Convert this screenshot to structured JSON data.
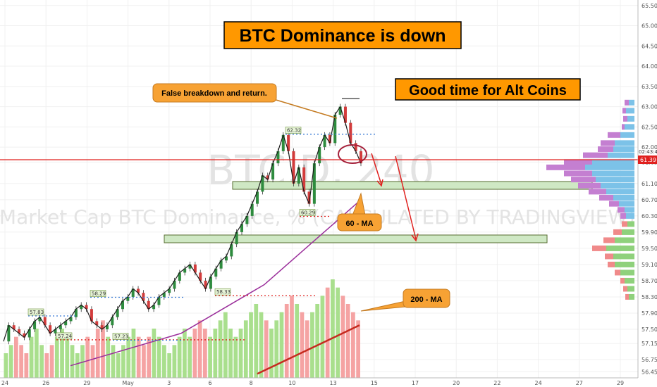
{
  "chart_data": {
    "type": "line",
    "title": "",
    "watermark": {
      "symbol": "BTC.D, 240",
      "name": "Market Cap BTC Dominance, % (CALCULATED BY TRADINGVIEW)",
      "color": "#e3e3e3"
    },
    "x_ticks": [
      "24",
      "26",
      "29",
      "May",
      "3",
      "6",
      "8",
      "10",
      "13",
      "15",
      "17",
      "20",
      "22",
      "24",
      "27",
      "29"
    ],
    "y_ticks": [
      "56.45",
      "56.75",
      "57.15",
      "57.50",
      "57.90",
      "58.30",
      "58.70",
      "59.10",
      "59.50",
      "59.90",
      "60.30",
      "60.70",
      "61.10",
      "61.63",
      "62.00",
      "62.50",
      "63.00",
      "63.50",
      "64.00",
      "64.50",
      "65.00",
      "65.50"
    ],
    "ylim": [
      56.3,
      65.6
    ],
    "current_price": {
      "value": 61.39,
      "label": "61.39",
      "countdown": "02:43:4",
      "color": "#e0201e"
    },
    "price_levels": [
      {
        "label": "62.32",
        "value": 62.32
      },
      {
        "label": "60.29",
        "value": 60.29
      },
      {
        "label": "58.33",
        "value": 58.33
      },
      {
        "label": "58.29",
        "value": 58.29
      },
      {
        "label": "57.83",
        "value": 57.83
      },
      {
        "label": "57.24",
        "value": 57.24
      },
      {
        "label": "57.23",
        "value": 57.23
      }
    ],
    "price_series": [
      57.2,
      57.6,
      57.5,
      57.4,
      57.3,
      57.5,
      57.7,
      57.8,
      57.6,
      57.4,
      57.5,
      57.6,
      57.7,
      57.8,
      58.0,
      58.1,
      58.0,
      57.7,
      57.6,
      57.5,
      57.6,
      57.8,
      58.0,
      58.2,
      58.3,
      58.5,
      58.4,
      58.2,
      58.0,
      58.1,
      58.3,
      58.4,
      58.5,
      58.7,
      58.9,
      59.0,
      59.1,
      58.9,
      58.7,
      58.5,
      58.8,
      59.0,
      59.2,
      59.3,
      59.6,
      59.9,
      60.1,
      60.3,
      60.6,
      60.9,
      61.3,
      61.2,
      61.6,
      61.9,
      62.3,
      61.9,
      61.1,
      61.5,
      60.9,
      60.6,
      61.6,
      62.0,
      62.3,
      62.1,
      62.8,
      63.0,
      62.6,
      62.1,
      61.9,
      61.6
    ],
    "series": [
      {
        "name": "60 - MA",
        "color": "#9b2f9b",
        "values": [
          56.6,
          56.7,
          56.8,
          56.9,
          57.0,
          57.1,
          57.2,
          57.3,
          57.4,
          57.6,
          57.8,
          58.0,
          58.2,
          58.4,
          58.6,
          58.9,
          59.2,
          59.5,
          59.8,
          60.1,
          60.4,
          60.7
        ]
      },
      {
        "name": "200 - MA",
        "color": "#c62a1f",
        "values": [
          56.4,
          56.6,
          56.8,
          57.0,
          57.2,
          57.4,
          57.6
        ]
      }
    ],
    "volume_bars": [
      3,
      4,
      5,
      4,
      3,
      5,
      6,
      4,
      3,
      4,
      5,
      6,
      5,
      4,
      3,
      4,
      5,
      4,
      6,
      7,
      5,
      4,
      3,
      4,
      5,
      6,
      5,
      4,
      5,
      6,
      5,
      4,
      3,
      4,
      5,
      6,
      5,
      6,
      7,
      6,
      5,
      6,
      7,
      8,
      6,
      5,
      6,
      7,
      8,
      9,
      8,
      7,
      6,
      7,
      8,
      9,
      10,
      9,
      8,
      7,
      8,
      9,
      10,
      11,
      12,
      11,
      10,
      9,
      8,
      7
    ],
    "zones": [
      {
        "name": "support-upper",
        "from": 60.62,
        "to": 60.78,
        "color": "#cfe8c4"
      },
      {
        "name": "support-lower",
        "from": 59.32,
        "to": 59.48,
        "color": "#cfe8c4"
      }
    ],
    "volume_profile_colors": {
      "up": "#7cc2e8",
      "down": "#c47fd1",
      "up2": "#8fd17c",
      "down2": "#f08a8a"
    },
    "annotations": {
      "headline": "BTC Dominance is down",
      "subheadline": "Good time for Alt Coins",
      "false_breakdown": "False breakdown and return.",
      "ma60_label": "60 - MA",
      "ma200_label": "200 - MA"
    },
    "colors": {
      "annotation_fill": "#f7a234",
      "annotation_box": "#ff9800",
      "grid": "#f0f0f0"
    }
  }
}
